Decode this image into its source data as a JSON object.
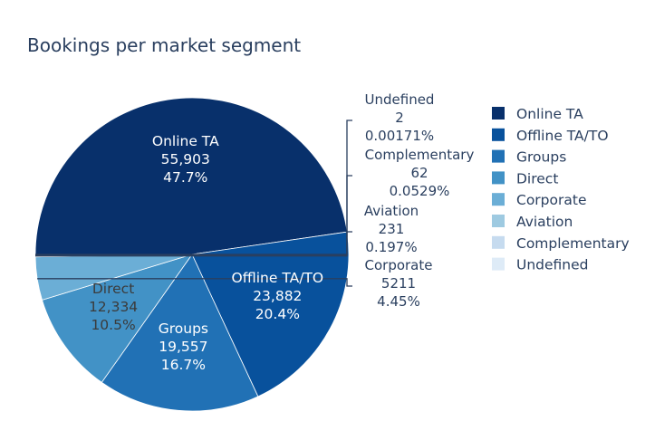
{
  "chart_data": {
    "type": "pie",
    "title": "Bookings per market segment",
    "slices": [
      {
        "label": "Online TA",
        "value": 55903,
        "value_text": "55,903",
        "percent_text": "47.7%",
        "color": "#08306b",
        "text_color": "#ffffff"
      },
      {
        "label": "Offline TA/TO",
        "value": 23882,
        "value_text": "23,882",
        "percent_text": "20.4%",
        "color": "#08519c",
        "text_color": "#ffffff"
      },
      {
        "label": "Groups",
        "value": 19557,
        "value_text": "19,557",
        "percent_text": "16.7%",
        "color": "#2171b5",
        "text_color": "#ffffff"
      },
      {
        "label": "Direct",
        "value": 12334,
        "value_text": "12,334",
        "percent_text": "10.5%",
        "color": "#4292c6",
        "text_color": "#3b3b3b"
      },
      {
        "label": "Corporate",
        "value": 5211,
        "value_text": "5211",
        "percent_text": "4.45%",
        "color": "#6baed6",
        "text_color": "#2a3f5f"
      },
      {
        "label": "Aviation",
        "value": 231,
        "value_text": "231",
        "percent_text": "0.197%",
        "color": "#9ecae1",
        "text_color": "#2a3f5f"
      },
      {
        "label": "Complementary",
        "value": 62,
        "value_text": "62",
        "percent_text": "0.0529%",
        "color": "#c6dbef",
        "text_color": "#2a3f5f"
      },
      {
        "label": "Undefined",
        "value": 2,
        "value_text": "2",
        "percent_text": "0.00171%",
        "color": "#deebf7",
        "text_color": "#2a3f5f"
      }
    ],
    "legend_position": "right"
  }
}
